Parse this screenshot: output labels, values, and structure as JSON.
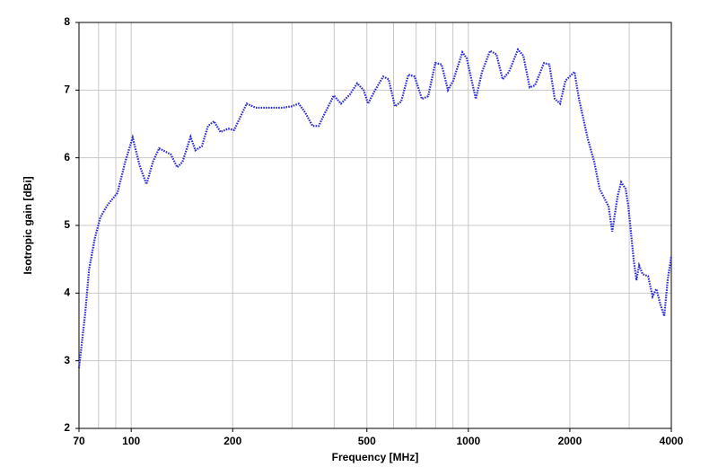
{
  "chart_data": {
    "type": "line",
    "x_label": "Frequency [MHz]",
    "y_label": "Isotropic gain [dBi]",
    "log_x": true,
    "grid": true,
    "xlim": [
      70,
      4000
    ],
    "ylim": [
      2,
      8
    ],
    "xticks": [
      70,
      100,
      200,
      500,
      1000,
      2000,
      4000
    ],
    "xgrid": [
      80,
      90,
      300,
      400,
      600,
      700,
      800,
      900,
      3000
    ],
    "yticks": [
      2,
      3,
      4,
      5,
      6,
      7,
      8
    ],
    "x": [
      70,
      73,
      75,
      78,
      81,
      85,
      91,
      96,
      101,
      106,
      111,
      116,
      121,
      131,
      137,
      142,
      150,
      155,
      162,
      169,
      176,
      184,
      194,
      202,
      211,
      220,
      234,
      257,
      281,
      299,
      314,
      328,
      345,
      360,
      371,
      399,
      419,
      446,
      468,
      489,
      504,
      529,
      559,
      580,
      606,
      632,
      664,
      693,
      728,
      760,
      798,
      833,
      870,
      902,
      960,
      989,
      1052,
      1098,
      1160,
      1211,
      1264,
      1320,
      1403,
      1456,
      1520,
      1576,
      1676,
      1739,
      1804,
      1871,
      1941,
      2064,
      2129,
      2263,
      2363,
      2451,
      2606,
      2671,
      2771,
      2840,
      2928,
      2983,
      3095,
      3152,
      3210,
      3289,
      3413,
      3519,
      3611,
      3718,
      3811,
      3905,
      4000
    ],
    "series": [
      {
        "color": "#2b2bd6",
        "values": [
          2.89,
          3.69,
          4.35,
          4.81,
          5.12,
          5.3,
          5.48,
          5.94,
          6.3,
          5.88,
          5.61,
          5.94,
          6.14,
          6.05,
          5.86,
          5.94,
          6.31,
          6.11,
          6.17,
          6.47,
          6.54,
          6.38,
          6.43,
          6.41,
          6.61,
          6.8,
          6.74,
          6.74,
          6.74,
          6.76,
          6.8,
          6.67,
          6.47,
          6.47,
          6.61,
          6.92,
          6.8,
          6.94,
          7.1,
          7.0,
          6.8,
          7.0,
          7.2,
          7.16,
          6.76,
          6.83,
          7.23,
          7.2,
          6.87,
          6.91,
          7.4,
          7.38,
          7.0,
          7.14,
          7.56,
          7.47,
          6.87,
          7.27,
          7.58,
          7.53,
          7.16,
          7.27,
          7.6,
          7.51,
          7.04,
          7.07,
          7.4,
          7.38,
          6.87,
          6.8,
          7.14,
          7.27,
          6.87,
          6.27,
          5.94,
          5.54,
          5.28,
          4.91,
          5.43,
          5.64,
          5.54,
          5.28,
          4.48,
          4.19,
          4.41,
          4.28,
          4.25,
          3.95,
          4.06,
          3.82,
          3.66,
          4.21,
          4.55
        ]
      }
    ]
  }
}
